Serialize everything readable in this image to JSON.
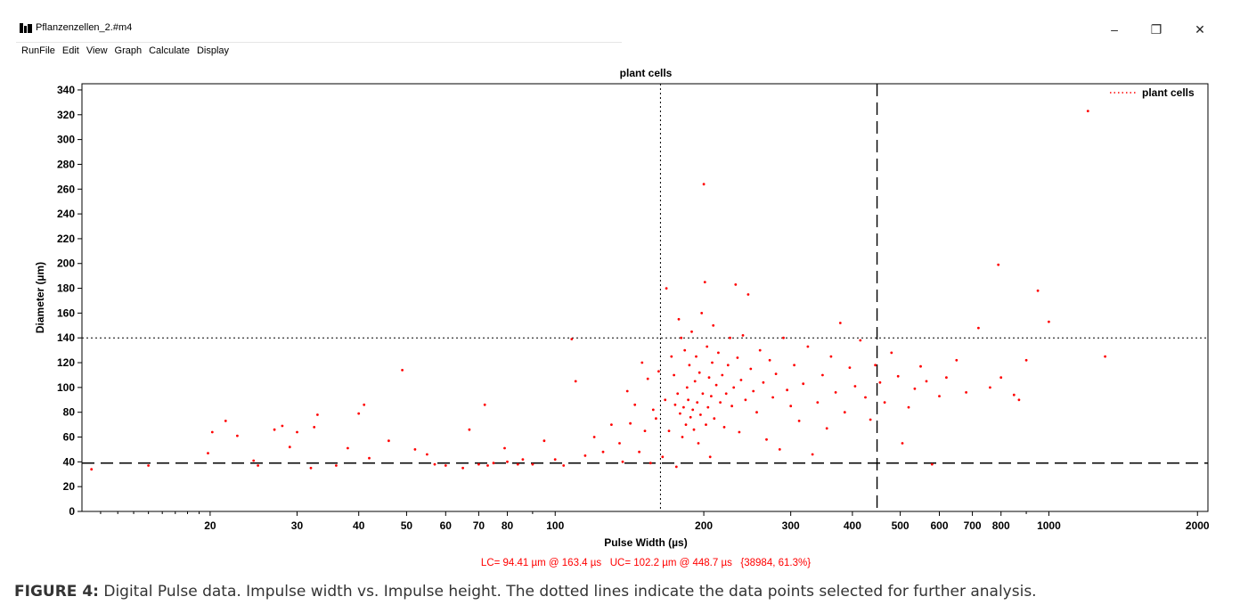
{
  "window": {
    "title": "Pflanzenzellen_2.#m4",
    "min_glyph": "–",
    "max_glyph": "❐",
    "close_glyph": "✕"
  },
  "menu": [
    "RunFile",
    "Edit",
    "View",
    "Graph",
    "Calculate",
    "Display"
  ],
  "colors": {
    "points": "#ff0000",
    "status": "#ff0000",
    "axis": "#000000"
  },
  "status_text": "LC= 94.41 µm @ 163.4 µs   UC= 102.2 µm @ 448.7 µs   {38984, 61.3%}",
  "caption": {
    "label": "FIGURE 4:",
    "text": " Digital Pulse data. Impulse width vs. Impulse height. The dotted lines indicate the data points selected for further analysis."
  },
  "chart_data": {
    "type": "scatter",
    "title": "plant cells",
    "xlabel": "Pulse Width (µs)",
    "ylabel": "Diameter (µm)",
    "xscale": "log",
    "xlim": [
      11,
      2100
    ],
    "ylim": [
      0,
      345
    ],
    "xticks": [
      20,
      30,
      40,
      50,
      60,
      70,
      80,
      100,
      200,
      300,
      400,
      500,
      600,
      700,
      800,
      1000,
      2000
    ],
    "yticks": [
      0,
      20,
      40,
      60,
      80,
      100,
      120,
      140,
      160,
      180,
      200,
      220,
      240,
      260,
      280,
      300,
      320,
      340
    ],
    "legend": {
      "position": "top-right",
      "entries": [
        "plant cells"
      ]
    },
    "grid": false,
    "reference_lines": [
      {
        "orientation": "vertical",
        "value": 163.4,
        "style": "dotted"
      },
      {
        "orientation": "vertical",
        "value": 448.7,
        "style": "dashed"
      },
      {
        "orientation": "horizontal",
        "value": 140,
        "style": "dotted"
      },
      {
        "orientation": "horizontal",
        "value": 39,
        "style": "dashed"
      }
    ],
    "series": [
      {
        "name": "plant cells",
        "points": [
          [
            11.5,
            34
          ],
          [
            15,
            37
          ],
          [
            19.8,
            47
          ],
          [
            20.2,
            64
          ],
          [
            21.5,
            73
          ],
          [
            22.7,
            61
          ],
          [
            24.5,
            41
          ],
          [
            25,
            37
          ],
          [
            27,
            66
          ],
          [
            28,
            69
          ],
          [
            29,
            52
          ],
          [
            30,
            64
          ],
          [
            32,
            35
          ],
          [
            32.5,
            68
          ],
          [
            33,
            78
          ],
          [
            36,
            37
          ],
          [
            38,
            51
          ],
          [
            40,
            79
          ],
          [
            41,
            86
          ],
          [
            42,
            43
          ],
          [
            46,
            57
          ],
          [
            49,
            114
          ],
          [
            52,
            50
          ],
          [
            55,
            46
          ],
          [
            57,
            38
          ],
          [
            60,
            37
          ],
          [
            65,
            35
          ],
          [
            67,
            66
          ],
          [
            70,
            38
          ],
          [
            72,
            86
          ],
          [
            73,
            37
          ],
          [
            75,
            39
          ],
          [
            79,
            51
          ],
          [
            80,
            40
          ],
          [
            84,
            38
          ],
          [
            86,
            42
          ],
          [
            90,
            38
          ],
          [
            95,
            57
          ],
          [
            100,
            42
          ],
          [
            104,
            37
          ],
          [
            108,
            139
          ],
          [
            110,
            105
          ],
          [
            115,
            45
          ],
          [
            120,
            60
          ],
          [
            125,
            48
          ],
          [
            130,
            70
          ],
          [
            135,
            55
          ],
          [
            137,
            40
          ],
          [
            140,
            97
          ],
          [
            142,
            71
          ],
          [
            145,
            86
          ],
          [
            148,
            48
          ],
          [
            150,
            120
          ],
          [
            152,
            65
          ],
          [
            154,
            107
          ],
          [
            156,
            39
          ],
          [
            158,
            82
          ],
          [
            160,
            75
          ],
          [
            162,
            113
          ],
          [
            165,
            44
          ],
          [
            167,
            90
          ],
          [
            168,
            180
          ],
          [
            170,
            65
          ],
          [
            172,
            125
          ],
          [
            174,
            110
          ],
          [
            175,
            86
          ],
          [
            176,
            36
          ],
          [
            177,
            95
          ],
          [
            178,
            155
          ],
          [
            179,
            79
          ],
          [
            180,
            140
          ],
          [
            181,
            60
          ],
          [
            182,
            84
          ],
          [
            183,
            130
          ],
          [
            184,
            70
          ],
          [
            185,
            100
          ],
          [
            186,
            90
          ],
          [
            187,
            118
          ],
          [
            188,
            76
          ],
          [
            189,
            145
          ],
          [
            190,
            82
          ],
          [
            191,
            66
          ],
          [
            192,
            105
          ],
          [
            193,
            125
          ],
          [
            194,
            88
          ],
          [
            195,
            55
          ],
          [
            196,
            112
          ],
          [
            197,
            78
          ],
          [
            198,
            160
          ],
          [
            199,
            95
          ],
          [
            200,
            264
          ],
          [
            201,
            185
          ],
          [
            202,
            70
          ],
          [
            203,
            133
          ],
          [
            204,
            84
          ],
          [
            205,
            108
          ],
          [
            206,
            44
          ],
          [
            207,
            93
          ],
          [
            208,
            120
          ],
          [
            209,
            150
          ],
          [
            210,
            75
          ],
          [
            212,
            102
          ],
          [
            214,
            128
          ],
          [
            216,
            88
          ],
          [
            218,
            110
          ],
          [
            220,
            68
          ],
          [
            222,
            95
          ],
          [
            224,
            118
          ],
          [
            226,
            140
          ],
          [
            228,
            85
          ],
          [
            230,
            100
          ],
          [
            232,
            183
          ],
          [
            234,
            124
          ],
          [
            236,
            64
          ],
          [
            238,
            106
          ],
          [
            240,
            142
          ],
          [
            243,
            90
          ],
          [
            246,
            175
          ],
          [
            249,
            115
          ],
          [
            252,
            97
          ],
          [
            256,
            80
          ],
          [
            260,
            130
          ],
          [
            264,
            104
          ],
          [
            268,
            58
          ],
          [
            272,
            122
          ],
          [
            276,
            92
          ],
          [
            280,
            111
          ],
          [
            285,
            50
          ],
          [
            290,
            140
          ],
          [
            295,
            98
          ],
          [
            300,
            85
          ],
          [
            305,
            118
          ],
          [
            312,
            73
          ],
          [
            318,
            103
          ],
          [
            325,
            133
          ],
          [
            332,
            46
          ],
          [
            340,
            88
          ],
          [
            348,
            110
          ],
          [
            355,
            67
          ],
          [
            362,
            125
          ],
          [
            370,
            96
          ],
          [
            378,
            152
          ],
          [
            386,
            80
          ],
          [
            395,
            116
          ],
          [
            405,
            101
          ],
          [
            415,
            138
          ],
          [
            425,
            92
          ],
          [
            435,
            74
          ],
          [
            445,
            118
          ],
          [
            455,
            104
          ],
          [
            465,
            88
          ],
          [
            480,
            128
          ],
          [
            495,
            109
          ],
          [
            505,
            55
          ],
          [
            520,
            84
          ],
          [
            535,
            99
          ],
          [
            550,
            117
          ],
          [
            565,
            105
          ],
          [
            580,
            38
          ],
          [
            600,
            93
          ],
          [
            620,
            108
          ],
          [
            650,
            122
          ],
          [
            680,
            96
          ],
          [
            720,
            148
          ],
          [
            760,
            100
          ],
          [
            790,
            199
          ],
          [
            800,
            108
          ],
          [
            850,
            94
          ],
          [
            870,
            90
          ],
          [
            900,
            122
          ],
          [
            950,
            178
          ],
          [
            1000,
            153
          ],
          [
            1200,
            323
          ],
          [
            1300,
            125
          ]
        ]
      }
    ]
  }
}
